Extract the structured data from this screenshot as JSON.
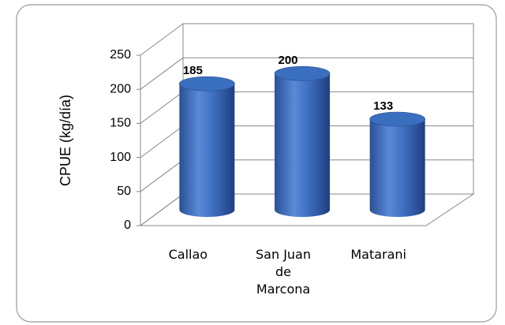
{
  "chart_data": {
    "type": "bar3d",
    "y_label": "CPUE (kg/día)",
    "categories": [
      "Callao",
      "San Juan de Marcona",
      "Matarani"
    ],
    "values": [
      185,
      200,
      133
    ],
    "color": "#3a6fc0",
    "ylim": [
      0,
      250
    ],
    "yticks": [
      0,
      50,
      100,
      150,
      200,
      250
    ],
    "grid": true
  }
}
